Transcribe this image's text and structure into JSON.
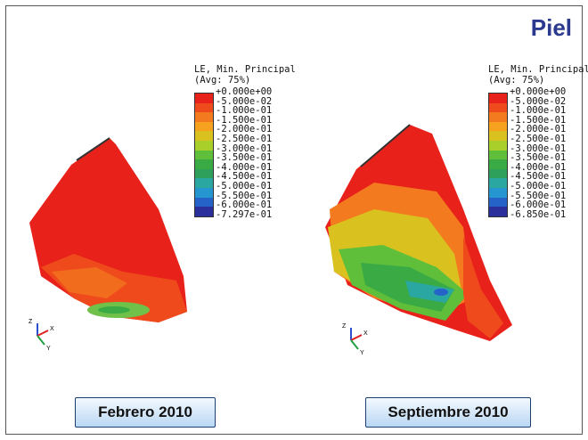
{
  "title": "Piel",
  "legend_left": {
    "header_line1": "LE, Min. Principal",
    "header_line2": "(Avg: 75%)",
    "ticks": [
      "+0.000e+00",
      "-5.000e-02",
      "-1.000e-01",
      "-1.500e-01",
      "-2.000e-01",
      "-2.500e-01",
      "-3.000e-01",
      "-3.500e-01",
      "-4.000e-01",
      "-4.500e-01",
      "-5.000e-01",
      "-5.500e-01",
      "-6.000e-01",
      "-7.297e-01"
    ]
  },
  "legend_right": {
    "header_line1": "LE, Min. Principal",
    "header_line2": "(Avg: 75%)",
    "ticks": [
      "+0.000e+00",
      "-5.000e-02",
      "-1.000e-01",
      "-1.500e-01",
      "-2.000e-01",
      "-2.500e-01",
      "-3.000e-01",
      "-3.500e-01",
      "-4.000e-01",
      "-4.500e-01",
      "-5.000e-01",
      "-5.500e-01",
      "-6.000e-01",
      "-6.850e-01"
    ]
  },
  "scale_colors": [
    "#e8221b",
    "#ef4a1c",
    "#f37a1f",
    "#f6a21e",
    "#d9c21f",
    "#a8cf2a",
    "#5fbf3a",
    "#3aaa45",
    "#2f9f5c",
    "#2aa7a0",
    "#2596d0",
    "#2563c9",
    "#2a2f9b"
  ],
  "axis_labels": {
    "z": "Z",
    "x": "X",
    "y": "Y"
  },
  "captions": {
    "left": "Febrero 2010",
    "right": "Septiembre 2010"
  }
}
